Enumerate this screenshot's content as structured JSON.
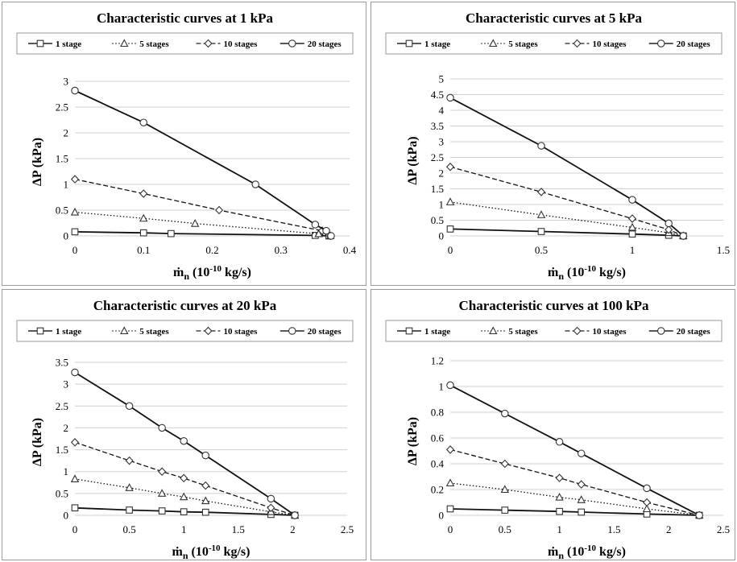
{
  "chart_data": [
    {
      "type": "line",
      "title": "Characteristic curves at 1 kPa",
      "xlabel": "ṁn (10-10 kg/s)",
      "xlabel_main": "ṁ",
      "xlabel_sub": "n",
      "xlabel_unit_pre": " (10",
      "xlabel_exp": "-10",
      "xlabel_unit_post": " kg/s)",
      "ylabel": "ΔP (kPa)",
      "xlim": [
        0,
        0.4
      ],
      "ylim": [
        0,
        3
      ],
      "xticks": [
        "0",
        "0.1",
        "0.2",
        "0.3",
        "0.4"
      ],
      "xtick_values": [
        0,
        0.1,
        0.2,
        0.3,
        0.4
      ],
      "yticks": [
        "0",
        "0.5",
        "1",
        "1.5",
        "2",
        "2.5",
        "3"
      ],
      "ytick_values": [
        0,
        0.5,
        1,
        1.5,
        2,
        2.5,
        3
      ],
      "grid": "horizontal",
      "legend": "top",
      "series": [
        {
          "name": "1 stage",
          "marker": "square",
          "dash": "solid",
          "x": [
            0,
            0.1,
            0.14,
            0.35,
            0.37
          ],
          "y": [
            0.08,
            0.06,
            0.045,
            0.01,
            0
          ]
        },
        {
          "name": "5 stages",
          "marker": "triangle",
          "dash": "dotted",
          "x": [
            0,
            0.1,
            0.175,
            0.355,
            0.372
          ],
          "y": [
            0.46,
            0.34,
            0.24,
            0.04,
            0
          ]
        },
        {
          "name": "10 stages",
          "marker": "diamond",
          "dash": "dashed",
          "x": [
            0,
            0.1,
            0.21,
            0.36,
            0.372
          ],
          "y": [
            1.1,
            0.82,
            0.5,
            0.1,
            0
          ]
        },
        {
          "name": "20 stages",
          "marker": "circle",
          "dash": "solid",
          "x": [
            0,
            0.1,
            0.263,
            0.35,
            0.366,
            0.373
          ],
          "y": [
            2.82,
            2.2,
            1.0,
            0.22,
            0.1,
            0
          ]
        }
      ]
    },
    {
      "type": "line",
      "title": "Characteristic curves at 5 kPa",
      "xlabel": "ṁn (10-10 kg/s)",
      "xlabel_main": "ṁ",
      "xlabel_sub": "n",
      "xlabel_unit_pre": " (10",
      "xlabel_exp": "-10",
      "xlabel_unit_post": " kg/s)",
      "ylabel": "ΔP (kPa)",
      "xlim": [
        0,
        1.5
      ],
      "ylim": [
        0,
        5
      ],
      "xticks": [
        "0",
        "0.5",
        "1",
        "1.5"
      ],
      "xtick_values": [
        0,
        0.5,
        1,
        1.5
      ],
      "yticks": [
        "0",
        "0.5",
        "1",
        "1.5",
        "2",
        "2.5",
        "3",
        "3.5",
        "4",
        "4.5",
        "5"
      ],
      "ytick_values": [
        0,
        0.5,
        1,
        1.5,
        2,
        2.5,
        3,
        3.5,
        4,
        4.5,
        5
      ],
      "grid": "horizontal",
      "legend": "top",
      "series": [
        {
          "name": "1 stage",
          "marker": "square",
          "dash": "solid",
          "x": [
            0,
            0.5,
            1,
            1.2,
            1.28
          ],
          "y": [
            0.22,
            0.14,
            0.06,
            0.02,
            0
          ]
        },
        {
          "name": "5 stages",
          "marker": "triangle",
          "dash": "dotted",
          "x": [
            0,
            0.5,
            1,
            1.2,
            1.28
          ],
          "y": [
            1.08,
            0.67,
            0.27,
            0.1,
            0
          ]
        },
        {
          "name": "10 stages",
          "marker": "diamond",
          "dash": "dashed",
          "x": [
            0,
            0.5,
            1,
            1.2,
            1.28
          ],
          "y": [
            2.2,
            1.4,
            0.55,
            0.2,
            0
          ]
        },
        {
          "name": "20 stages",
          "marker": "circle",
          "dash": "solid",
          "x": [
            0,
            0.5,
            1,
            1.2,
            1.28
          ],
          "y": [
            4.4,
            2.87,
            1.15,
            0.4,
            0
          ]
        }
      ]
    },
    {
      "type": "line",
      "title": "Characteristic curves at 20 kPa",
      "xlabel": "ṁn (10-10 kg/s)",
      "xlabel_main": "ṁ",
      "xlabel_sub": "n",
      "xlabel_unit_pre": " (10",
      "xlabel_exp": "-10",
      "xlabel_unit_post": " kg/s)",
      "ylabel": "ΔP (kPa)",
      "xlim": [
        0,
        2.5
      ],
      "ylim": [
        0,
        3.5
      ],
      "xticks": [
        "0",
        "0.5",
        "1",
        "1.5",
        "2",
        "2.5"
      ],
      "xtick_values": [
        0,
        0.5,
        1,
        1.5,
        2,
        2.5
      ],
      "yticks": [
        "0",
        "0.5",
        "1",
        "1.5",
        "2",
        "2.5",
        "3",
        "3.5"
      ],
      "ytick_values": [
        0,
        0.5,
        1,
        1.5,
        2,
        2.5,
        3,
        3.5
      ],
      "grid": "horizontal",
      "legend": "top",
      "series": [
        {
          "name": "1 stage",
          "marker": "square",
          "dash": "solid",
          "x": [
            0,
            0.5,
            0.8,
            1,
            1.2,
            1.8,
            2.02
          ],
          "y": [
            0.17,
            0.12,
            0.1,
            0.08,
            0.07,
            0.02,
            0
          ]
        },
        {
          "name": "5 stages",
          "marker": "triangle",
          "dash": "dotted",
          "x": [
            0,
            0.5,
            0.8,
            1,
            1.2,
            1.8,
            2.02
          ],
          "y": [
            0.83,
            0.63,
            0.5,
            0.42,
            0.33,
            0.08,
            0
          ]
        },
        {
          "name": "10 stages",
          "marker": "diamond",
          "dash": "dashed",
          "x": [
            0,
            0.5,
            0.8,
            1,
            1.2,
            1.8,
            2.02
          ],
          "y": [
            1.67,
            1.25,
            1.0,
            0.85,
            0.68,
            0.17,
            0
          ]
        },
        {
          "name": "20 stages",
          "marker": "circle",
          "dash": "solid",
          "x": [
            0,
            0.5,
            0.8,
            1,
            1.2,
            1.8,
            2.02
          ],
          "y": [
            3.27,
            2.5,
            2.0,
            1.7,
            1.37,
            0.38,
            0
          ]
        }
      ]
    },
    {
      "type": "line",
      "title": "Characteristic curves at 100 kPa",
      "xlabel": "ṁn (10-10 kg/s)",
      "xlabel_main": "ṁ",
      "xlabel_sub": "n",
      "xlabel_unit_pre": " (10",
      "xlabel_exp": "-10",
      "xlabel_unit_post": " kg/s)",
      "ylabel": "ΔP (kPa)",
      "xlim": [
        0,
        2.5
      ],
      "ylim": [
        0,
        1.2
      ],
      "xticks": [
        "0",
        "0.5",
        "1",
        "1.5",
        "2",
        "2.5"
      ],
      "xtick_values": [
        0,
        0.5,
        1,
        1.5,
        2,
        2.5
      ],
      "yticks": [
        "0",
        "0.2",
        "0.4",
        "0.6",
        "0.8",
        "1",
        "1.2"
      ],
      "ytick_values": [
        0,
        0.2,
        0.4,
        0.6,
        0.8,
        1,
        1.2
      ],
      "grid": "horizontal",
      "legend": "top",
      "series": [
        {
          "name": "1 stage",
          "marker": "square",
          "dash": "solid",
          "x": [
            0,
            0.5,
            1,
            1.2,
            1.8,
            2.28
          ],
          "y": [
            0.05,
            0.04,
            0.03,
            0.025,
            0.01,
            0
          ]
        },
        {
          "name": "5 stages",
          "marker": "triangle",
          "dash": "dotted",
          "x": [
            0,
            0.5,
            1,
            1.2,
            1.8,
            2.28
          ],
          "y": [
            0.25,
            0.2,
            0.14,
            0.12,
            0.05,
            0
          ]
        },
        {
          "name": "10 stages",
          "marker": "diamond",
          "dash": "dashed",
          "x": [
            0,
            0.5,
            1,
            1.2,
            1.8,
            2.28
          ],
          "y": [
            0.51,
            0.4,
            0.29,
            0.24,
            0.1,
            0
          ]
        },
        {
          "name": "20 stages",
          "marker": "circle",
          "dash": "solid",
          "x": [
            0,
            0.5,
            1,
            1.2,
            1.8,
            2.28
          ],
          "y": [
            1.01,
            0.79,
            0.57,
            0.48,
            0.21,
            0
          ]
        }
      ]
    }
  ]
}
